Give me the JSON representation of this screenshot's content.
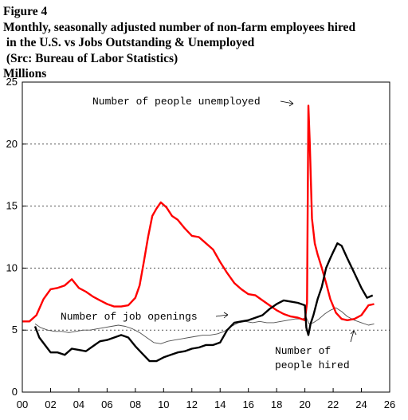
{
  "chart_data": {
    "type": "line",
    "title": "Figure 4",
    "subtitle_lines": [
      "Monthly, seasonally adjusted number of non-farm employees hired",
      " in the U.S. vs Jobs Outstanding & Unemployed",
      " (Src: Bureau of Labor Statistics)"
    ],
    "ylabel": "Millions",
    "xlabel": "",
    "xlim": [
      2000,
      2026
    ],
    "ylim": [
      0,
      25
    ],
    "x_ticks": [
      2000,
      2002,
      2004,
      2006,
      2008,
      2010,
      2012,
      2014,
      2016,
      2018,
      2020,
      2022,
      2024,
      2026
    ],
    "x_tick_labels": [
      "00",
      "02",
      "04",
      "06",
      "08",
      "10",
      "12",
      "14",
      "16",
      "18",
      "20",
      "22",
      "24",
      "26"
    ],
    "y_ticks": [
      0,
      5,
      10,
      15,
      20,
      25
    ],
    "y_tick_labels": [
      "0",
      "5",
      "10",
      "15",
      "20",
      "25"
    ],
    "grid": "horizontal dotted at 5, 10, 15, 20",
    "colors": {
      "unemployed": "#ff0000",
      "hired": "#000000",
      "openings": "#505050",
      "grid": "#555555"
    },
    "annotations": {
      "unemployed": "Number of people unemployed",
      "openings": "Number of job openings",
      "hired_line1": "Number of",
      "hired_line2": "people hired"
    },
    "series": [
      {
        "key": "unemployed",
        "x": [
          2000.0,
          2000.5,
          2001.0,
          2001.5,
          2002.0,
          2002.5,
          2003.0,
          2003.5,
          2004.0,
          2004.5,
          2005.0,
          2005.5,
          2006.0,
          2006.5,
          2007.0,
          2007.5,
          2008.0,
          2008.3,
          2008.6,
          2008.9,
          2009.2,
          2009.5,
          2009.8,
          2010.2,
          2010.6,
          2011.0,
          2011.5,
          2012.0,
          2012.5,
          2013.0,
          2013.5,
          2014.0,
          2014.5,
          2015.0,
          2015.5,
          2016.0,
          2016.5,
          2017.0,
          2017.5,
          2018.0,
          2018.5,
          2019.0,
          2019.5,
          2020.0,
          2020.15,
          2020.25,
          2020.35,
          2020.5,
          2020.7,
          2020.9,
          2021.2,
          2021.5,
          2021.8,
          2022.2,
          2022.6,
          2023.0,
          2023.5,
          2024.0,
          2024.5,
          2024.9
        ],
        "values": [
          5.7,
          5.7,
          6.2,
          7.5,
          8.3,
          8.4,
          8.6,
          9.1,
          8.4,
          8.1,
          7.7,
          7.4,
          7.1,
          6.9,
          6.9,
          7.0,
          7.6,
          8.6,
          10.5,
          12.5,
          14.2,
          14.8,
          15.3,
          14.9,
          14.2,
          13.9,
          13.2,
          12.6,
          12.5,
          12.0,
          11.5,
          10.5,
          9.6,
          8.8,
          8.3,
          7.9,
          7.8,
          7.4,
          7.0,
          6.6,
          6.3,
          6.1,
          6.0,
          5.8,
          7.2,
          23.1,
          20.0,
          14.0,
          12.0,
          11.1,
          10.0,
          8.8,
          7.5,
          6.4,
          5.9,
          5.8,
          5.9,
          6.2,
          7.0,
          7.1
        ]
      },
      {
        "key": "hired",
        "x": [
          2000.9,
          2001.2,
          2001.6,
          2002.0,
          2002.5,
          2003.0,
          2003.5,
          2004.0,
          2004.5,
          2005.0,
          2005.5,
          2006.0,
          2006.5,
          2007.0,
          2007.5,
          2008.0,
          2008.5,
          2009.0,
          2009.5,
          2010.0,
          2010.5,
          2011.0,
          2011.5,
          2012.0,
          2012.5,
          2013.0,
          2013.5,
          2014.0,
          2014.5,
          2015.0,
          2015.5,
          2016.0,
          2016.5,
          2017.0,
          2017.5,
          2018.0,
          2018.5,
          2019.0,
          2019.5,
          2020.0,
          2020.1,
          2020.25,
          2020.4,
          2020.6,
          2020.9,
          2021.2,
          2021.5,
          2021.8,
          2022.0,
          2022.3,
          2022.6,
          2023.0,
          2023.5,
          2024.0,
          2024.4,
          2024.8
        ],
        "values": [
          5.3,
          4.4,
          3.8,
          3.2,
          3.2,
          3.0,
          3.5,
          3.4,
          3.3,
          3.7,
          4.1,
          4.2,
          4.4,
          4.6,
          4.4,
          3.7,
          3.1,
          2.5,
          2.5,
          2.8,
          3.0,
          3.2,
          3.3,
          3.5,
          3.6,
          3.8,
          3.8,
          4.0,
          5.0,
          5.6,
          5.7,
          5.8,
          6.0,
          6.2,
          6.7,
          7.1,
          7.4,
          7.3,
          7.2,
          7.0,
          5.2,
          4.6,
          5.5,
          6.2,
          7.5,
          8.5,
          10.0,
          10.8,
          11.3,
          12.0,
          11.8,
          10.8,
          9.6,
          8.4,
          7.6,
          7.8
        ]
      },
      {
        "key": "openings",
        "x": [
          2000.9,
          2001.3,
          2001.8,
          2002.3,
          2002.8,
          2003.3,
          2003.8,
          2004.3,
          2004.8,
          2005.3,
          2005.8,
          2006.3,
          2006.8,
          2007.3,
          2007.8,
          2008.3,
          2008.8,
          2009.3,
          2009.8,
          2010.3,
          2010.8,
          2011.3,
          2011.8,
          2012.3,
          2012.8,
          2013.3,
          2013.8,
          2014.3,
          2014.8,
          2015.3,
          2015.8,
          2016.3,
          2016.8,
          2017.3,
          2017.8,
          2018.3,
          2018.8,
          2019.3,
          2019.8,
          2020.1,
          2020.3,
          2020.6,
          2021.0,
          2021.4,
          2021.8,
          2022.2,
          2022.6,
          2023.0,
          2023.5,
          2024.0,
          2024.5,
          2024.9
        ],
        "values": [
          5.5,
          5.2,
          5.0,
          4.9,
          4.9,
          4.8,
          4.9,
          5.0,
          5.0,
          5.1,
          5.2,
          5.3,
          5.4,
          5.3,
          5.1,
          4.8,
          4.4,
          4.0,
          3.9,
          4.1,
          4.2,
          4.3,
          4.4,
          4.5,
          4.6,
          4.6,
          4.7,
          4.9,
          5.3,
          5.6,
          5.7,
          5.6,
          5.7,
          5.6,
          5.6,
          5.7,
          5.8,
          5.9,
          5.9,
          6.0,
          5.5,
          5.6,
          5.9,
          6.3,
          6.6,
          6.8,
          6.5,
          6.1,
          5.8,
          5.6,
          5.4,
          5.5
        ]
      }
    ]
  }
}
